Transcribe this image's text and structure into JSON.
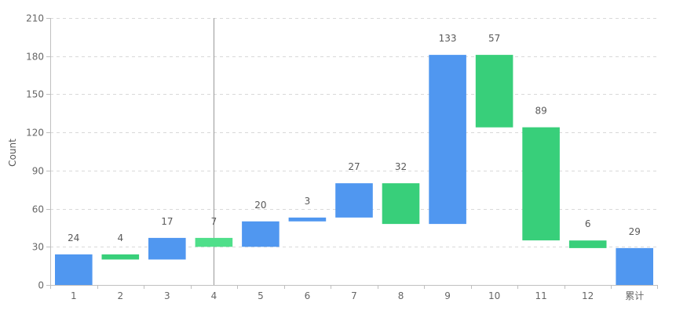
{
  "chart_data": {
    "type": "bar",
    "subtype": "waterfall",
    "ylabel": "Count",
    "xlabel": "",
    "ylim": [
      0,
      210
    ],
    "yticks": [
      0,
      30,
      60,
      90,
      120,
      150,
      180,
      210
    ],
    "grid": "horizontal dashed",
    "categories": [
      "1",
      "2",
      "3",
      "4",
      "5",
      "6",
      "7",
      "8",
      "9",
      "10",
      "11",
      "12",
      "累计"
    ],
    "labels": [
      "24",
      "4",
      "17",
      "7",
      "20",
      "3",
      "27",
      "32",
      "133",
      "57",
      "89",
      "6",
      "29"
    ],
    "bars": [
      {
        "start": 0,
        "end": 24,
        "kind": "increase"
      },
      {
        "start": 24,
        "end": 20,
        "kind": "decrease"
      },
      {
        "start": 20,
        "end": 37,
        "kind": "increase"
      },
      {
        "start": 37,
        "end": 30,
        "kind": "decrease"
      },
      {
        "start": 30,
        "end": 50,
        "kind": "increase"
      },
      {
        "start": 50,
        "end": 53,
        "kind": "increase"
      },
      {
        "start": 53,
        "end": 80,
        "kind": "increase"
      },
      {
        "start": 80,
        "end": 48,
        "kind": "decrease"
      },
      {
        "start": 48,
        "end": 181,
        "kind": "increase"
      },
      {
        "start": 181,
        "end": 124,
        "kind": "decrease"
      },
      {
        "start": 124,
        "end": 35,
        "kind": "decrease"
      },
      {
        "start": 35,
        "end": 29,
        "kind": "decrease"
      },
      {
        "start": 0,
        "end": 29,
        "kind": "total"
      }
    ],
    "colors": {
      "increase": "#5097f0",
      "decrease": "#38cf7a",
      "total": "#5097f0",
      "highlight_decrease": "#4fdf8a"
    },
    "highlighted_category": "4"
  }
}
